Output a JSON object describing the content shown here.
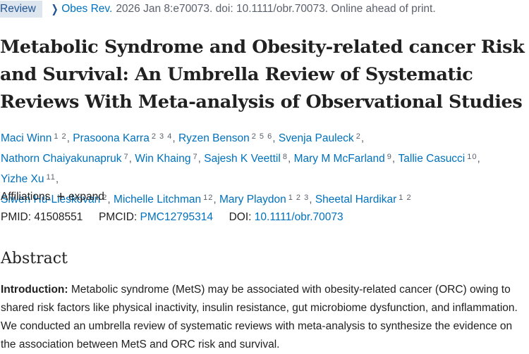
{
  "topline": {
    "type_badge": "Review",
    "journal": "Obes Rev.",
    "citation": "2026 Jan 8:e70073. doi: 10.1111/obr.70073. Online ahead of print."
  },
  "title": "Metabolic Syndrome and Obesity-related cancer Risk and Survival: An Umbrella Review of Systematic Reviews With Meta-analysis of Observational Studies",
  "authors": [
    {
      "name": "Maci Winn",
      "affs": "1 2"
    },
    {
      "name": "Prasoona Karra",
      "affs": "2 3 4"
    },
    {
      "name": "Ryzen Benson",
      "affs": "2 5 6"
    },
    {
      "name": "Svenja Pauleck",
      "affs": "2"
    },
    {
      "name": "Nathorn Chaiyakunapruk",
      "affs": "7"
    },
    {
      "name": "Win Khaing",
      "affs": "7"
    },
    {
      "name": "Sajesh K Veettil",
      "affs": "8"
    },
    {
      "name": "Mary M McFarland",
      "affs": "9"
    },
    {
      "name": "Tallie Casucci",
      "affs": "10"
    },
    {
      "name": "Yizhe Xu",
      "affs": "11"
    },
    {
      "name": "Siwen Hu-Lieskovan",
      "affs": "2"
    },
    {
      "name": "Michelle Litchman",
      "affs": "12"
    },
    {
      "name": "Mary Playdon",
      "affs": "1 2 3"
    },
    {
      "name": "Sheetal Hardikar",
      "affs": "1 2"
    }
  ],
  "affiliations": {
    "label": "Affiliations",
    "expand_label": "expand"
  },
  "identifiers": {
    "pmid_label": "PMID:",
    "pmid": "41508551",
    "pmcid_label": "PMCID:",
    "pmcid": "PMC12795314",
    "doi_label": "DOI:",
    "doi": "10.1111/obr.70073"
  },
  "abstract": {
    "heading": "Abstract",
    "intro_label": "Introduction:",
    "intro_text": "Metabolic syndrome (MetS) may be associated with obesity-related cancer (ORC) owing to shared risk factors like physical inactivity, insulin resistance, gut microbiome dysfunction, and inflammation. We conducted an umbrella review of systematic reviews with meta-analysis to synthesize the evidence on the association between MetS and ORC risk and survival."
  }
}
